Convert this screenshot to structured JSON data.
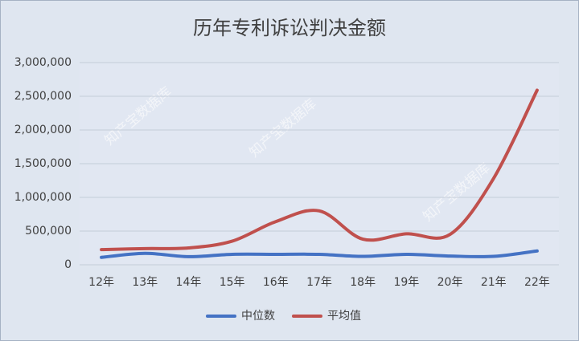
{
  "chart_data": {
    "type": "line",
    "title": "历年专利诉讼判决金额",
    "categories": [
      "12年",
      "13年",
      "14年",
      "15年",
      "16年",
      "17年",
      "18年",
      "19年",
      "20年",
      "21年",
      "22年"
    ],
    "series": [
      {
        "name": "中位数",
        "color": "#4472c4",
        "values": [
          110000,
          170000,
          120000,
          155000,
          155000,
          155000,
          125000,
          155000,
          130000,
          125000,
          205000
        ]
      },
      {
        "name": "平均值",
        "color": "#c0504d",
        "values": [
          225000,
          240000,
          250000,
          350000,
          640000,
          800000,
          380000,
          460000,
          450000,
          1280000,
          2590000
        ]
      }
    ],
    "ylim": [
      0,
      3000000
    ],
    "yticks": [
      0,
      {
        "value": 500000,
        "label": "500,000"
      },
      {
        "value": 1000000,
        "label": "1,000,000"
      },
      {
        "value": 1500000,
        "label": "1,500,000"
      },
      {
        "value": 2000000,
        "label": "2,000,000"
      },
      {
        "value": 2500000,
        "label": "2,500,000"
      },
      {
        "value": 3000000,
        "label": "3,000,000"
      }
    ],
    "grid": true,
    "smooth": true,
    "legend": "bottom",
    "watermarks": [
      "知产宝数据库",
      "知产宝数据库",
      "知产宝数据库"
    ]
  }
}
